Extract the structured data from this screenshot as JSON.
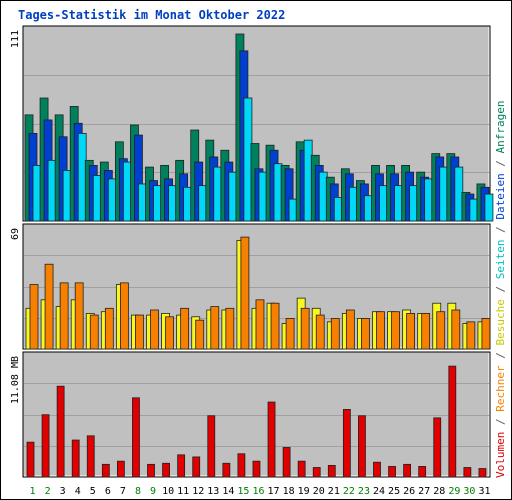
{
  "chart_data": {
    "title": "Tages-Statistik im Monat Oktober 2022",
    "type": "bar",
    "days": [
      "1",
      "2",
      "3",
      "4",
      "5",
      "6",
      "7",
      "8",
      "9",
      "10",
      "11",
      "12",
      "13",
      "14",
      "15",
      "16",
      "17",
      "18",
      "19",
      "20",
      "21",
      "22",
      "23",
      "24",
      "25",
      "26",
      "27",
      "28",
      "29",
      "30",
      "31"
    ],
    "weekend_days": [
      "1",
      "2",
      "8",
      "9",
      "15",
      "16",
      "22",
      "23",
      "29",
      "30"
    ],
    "panels": [
      {
        "name": "requests-files-pages",
        "axis_max_label": "111",
        "ymax": 111,
        "series": [
          {
            "name": "Anfragen",
            "color": "#00805c",
            "values": [
              63,
              73,
              63,
              68,
              36,
              35,
              47,
              57,
              32,
              33,
              36,
              54,
              48,
              42,
              111,
              46,
              45,
              33,
              47,
              39,
              26,
              31,
              24,
              33,
              33,
              33,
              29,
              40,
              40,
              17,
              22
            ]
          },
          {
            "name": "Dateien",
            "color": "#0040d0",
            "values": [
              52,
              60,
              50,
              58,
              33,
              30,
              37,
              51,
              24,
              25,
              28,
              35,
              38,
              35,
              101,
              31,
              42,
              31,
              42,
              33,
              22,
              28,
              22,
              28,
              28,
              29,
              26,
              38,
              38,
              16,
              20
            ]
          },
          {
            "name": "Seiten",
            "color": "#00d8f8",
            "values": [
              33,
              36,
              30,
              52,
              27,
              25,
              35,
              22,
              21,
              21,
              20,
              21,
              32,
              29,
              73,
              29,
              34,
              13,
              48,
              29,
              14,
              20,
              15,
              21,
              21,
              21,
              25,
              32,
              32,
              13,
              16
            ]
          }
        ]
      },
      {
        "name": "visits-computers",
        "axis_max_label": "69",
        "ymax": 69,
        "series": [
          {
            "name": "Besuche",
            "color": "#f8f820",
            "values": [
              24,
              29,
              25,
              29,
              21,
              22,
              38,
              20,
              20,
              21,
              20,
              19,
              23,
              23,
              64,
              24,
              27,
              15,
              30,
              24,
              16,
              21,
              18,
              22,
              22,
              23,
              21,
              27,
              27,
              15,
              16
            ]
          },
          {
            "name": "Rechner",
            "color": "#f88000",
            "values": [
              38,
              50,
              39,
              39,
              20,
              24,
              39,
              20,
              23,
              19,
              24,
              17,
              25,
              24,
              66,
              29,
              27,
              18,
              24,
              20,
              18,
              23,
              18,
              22,
              22,
              21,
              21,
              22,
              23,
              16,
              18
            ]
          }
        ]
      },
      {
        "name": "volume",
        "axis_max_label": "11.08 MB",
        "ymax": 11.08,
        "series": [
          {
            "name": "Volumen",
            "color": "#e00000",
            "values": [
              3.3,
              5.9,
              8.6,
              3.5,
              3.9,
              1.2,
              1.5,
              7.5,
              1.2,
              1.3,
              2.1,
              1.9,
              5.8,
              1.3,
              2.2,
              1.5,
              7.1,
              2.8,
              1.5,
              0.9,
              1.1,
              6.4,
              5.8,
              1.4,
              1.0,
              1.2,
              1.0,
              5.6,
              10.5,
              0.9,
              0.8
            ]
          }
        ]
      }
    ],
    "legend_left_to_right": [
      "Volumen",
      "/",
      "Rechner",
      "/",
      "Besuche",
      "/",
      "Seiten",
      "/",
      "Dateien",
      "/",
      "Anfragen"
    ],
    "legend_colors": {
      "Volumen": "#e00000",
      "Rechner": "#f88000",
      "Besuche": "#c8c800",
      "Seiten": "#00c0c0",
      "Dateien": "#0040d0",
      "Anfragen": "#00805c",
      "/": "#606060"
    },
    "grid": true
  }
}
